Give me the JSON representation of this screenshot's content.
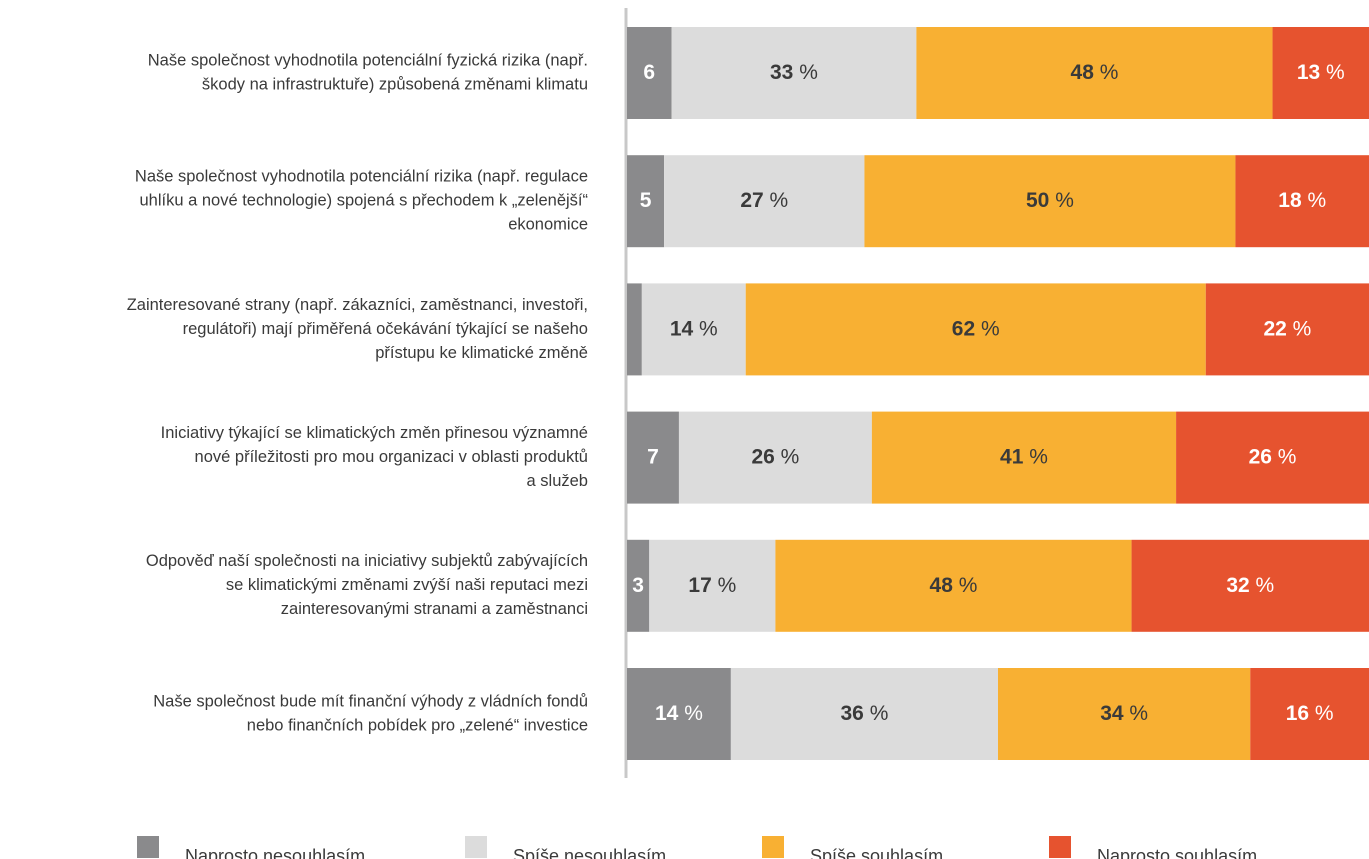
{
  "chart_data": {
    "type": "stacked-bar-horizontal",
    "categories": [
      [
        "Naše společnost vyhodnotila potenciální fyzická rizika (např.",
        "škody na infrastruktuře) způsobená změnami klimatu"
      ],
      [
        "Naše společnost vyhodnotila potenciální rizika (např. regulace",
        "uhlíku a nové technologie) spojená s přechodem k „zelenější“",
        "ekonomice"
      ],
      [
        "Zainteresované strany (např. zákazníci, zaměstnanci, investoři,",
        "regulátoři) mají přiměřená očekávání týkající se našeho",
        "přístupu ke klimatické změně"
      ],
      [
        "Iniciativy týkající se klimatických změn přinesou významné",
        "nové příležitosti pro mou organizaci v oblasti produktů",
        "a služeb"
      ],
      [
        "Odpověď naší společnosti na iniciativy subjektů zabývajících",
        "se klimatickými změnami zvýší naši reputaci mezi",
        "zainteresovanými stranami a zaměstnanci"
      ],
      [
        "Naše společnost bude mít finanční výhody z vládních fondů",
        "nebo finančních pobídek pro „zelené“ investice"
      ]
    ],
    "series": [
      {
        "name": "Naprosto nesouhlasím",
        "color": "#8a8a8c",
        "values": [
          6,
          5,
          2,
          7,
          3,
          14
        ],
        "value_labels": [
          "6",
          "5",
          null,
          "7",
          "3",
          "14 %"
        ]
      },
      {
        "name": "Spíše nesouhlasím",
        "color": "#dcdcdc",
        "values": [
          33,
          27,
          14,
          26,
          17,
          36
        ],
        "value_labels": [
          "33 %",
          "27 %",
          "14 %",
          "26 %",
          "17 %",
          "36 %"
        ]
      },
      {
        "name": "Spíše souhlasím",
        "color": "#f8b033",
        "values": [
          48,
          50,
          62,
          41,
          48,
          34
        ],
        "value_labels": [
          "48 %",
          "50 %",
          "62 %",
          "41 %",
          "48 %",
          "34 %"
        ]
      },
      {
        "name": "Naprosto souhlasím",
        "color": "#e6532f",
        "values": [
          13,
          18,
          22,
          26,
          32,
          16
        ],
        "value_labels": [
          "13 %",
          "18 %",
          "22 %",
          "26 %",
          "32 %",
          "16 %"
        ]
      }
    ],
    "xlim": [
      0,
      100
    ]
  }
}
